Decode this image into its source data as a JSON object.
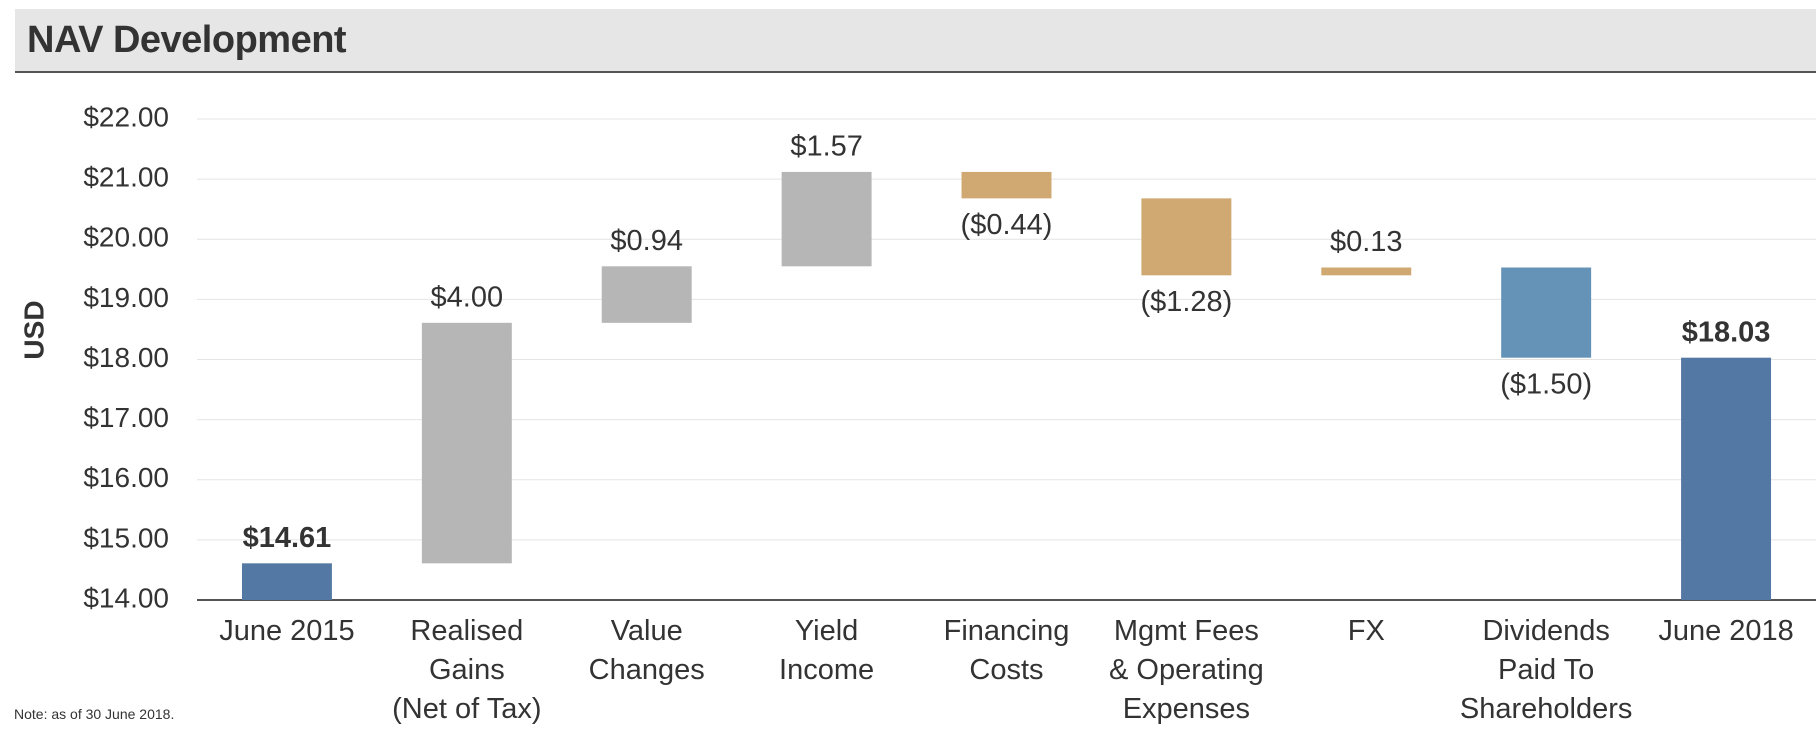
{
  "chart_data": {
    "type": "waterfall",
    "title": "NAV Development",
    "y_label": "USD",
    "note": "Note: as of 30 June 2018.",
    "categories": [
      "June 2015",
      "Realised Gains\n(Net of Tax)",
      "Value\nChanges",
      "Yield\nIncome",
      "Financing\nCosts",
      "Mgmt Fees\n& Operating\nExpenses",
      "FX",
      "Dividends\nPaid To\nShareholders",
      "June 2018"
    ],
    "values": [
      14.61,
      4.0,
      0.94,
      1.57,
      -0.44,
      -1.28,
      0.13,
      -1.5,
      18.03
    ],
    "value_labels": [
      "$14.61",
      "$4.00",
      "$0.94",
      "$1.57",
      "($0.44)",
      "($1.28)",
      "$0.13",
      "($1.50)",
      "$18.03"
    ],
    "measure": [
      "absolute",
      "relative",
      "relative",
      "relative",
      "relative",
      "relative",
      "relative",
      "relative",
      "absolute"
    ],
    "colors": [
      "#5378a3",
      "#b5b6b5",
      "#b5b6b5",
      "#b5b6b5",
      "#cfa872",
      "#cfa872",
      "#cfa872",
      "#6593b8",
      "#5378a3"
    ],
    "ylim": [
      14,
      22
    ],
    "yticks": [
      {
        "value": 14,
        "label": "$14.00"
      },
      {
        "value": 15,
        "label": "$15.00"
      },
      {
        "value": 16,
        "label": "$16.00"
      },
      {
        "value": 17,
        "label": "$17.00"
      },
      {
        "value": 18,
        "label": "$18.00"
      },
      {
        "value": 19,
        "label": "$19.00"
      },
      {
        "value": 20,
        "label": "$20.00"
      },
      {
        "value": 21,
        "label": "$21.00"
      },
      {
        "value": 22,
        "label": "$22.00"
      }
    ],
    "grid": true
  }
}
